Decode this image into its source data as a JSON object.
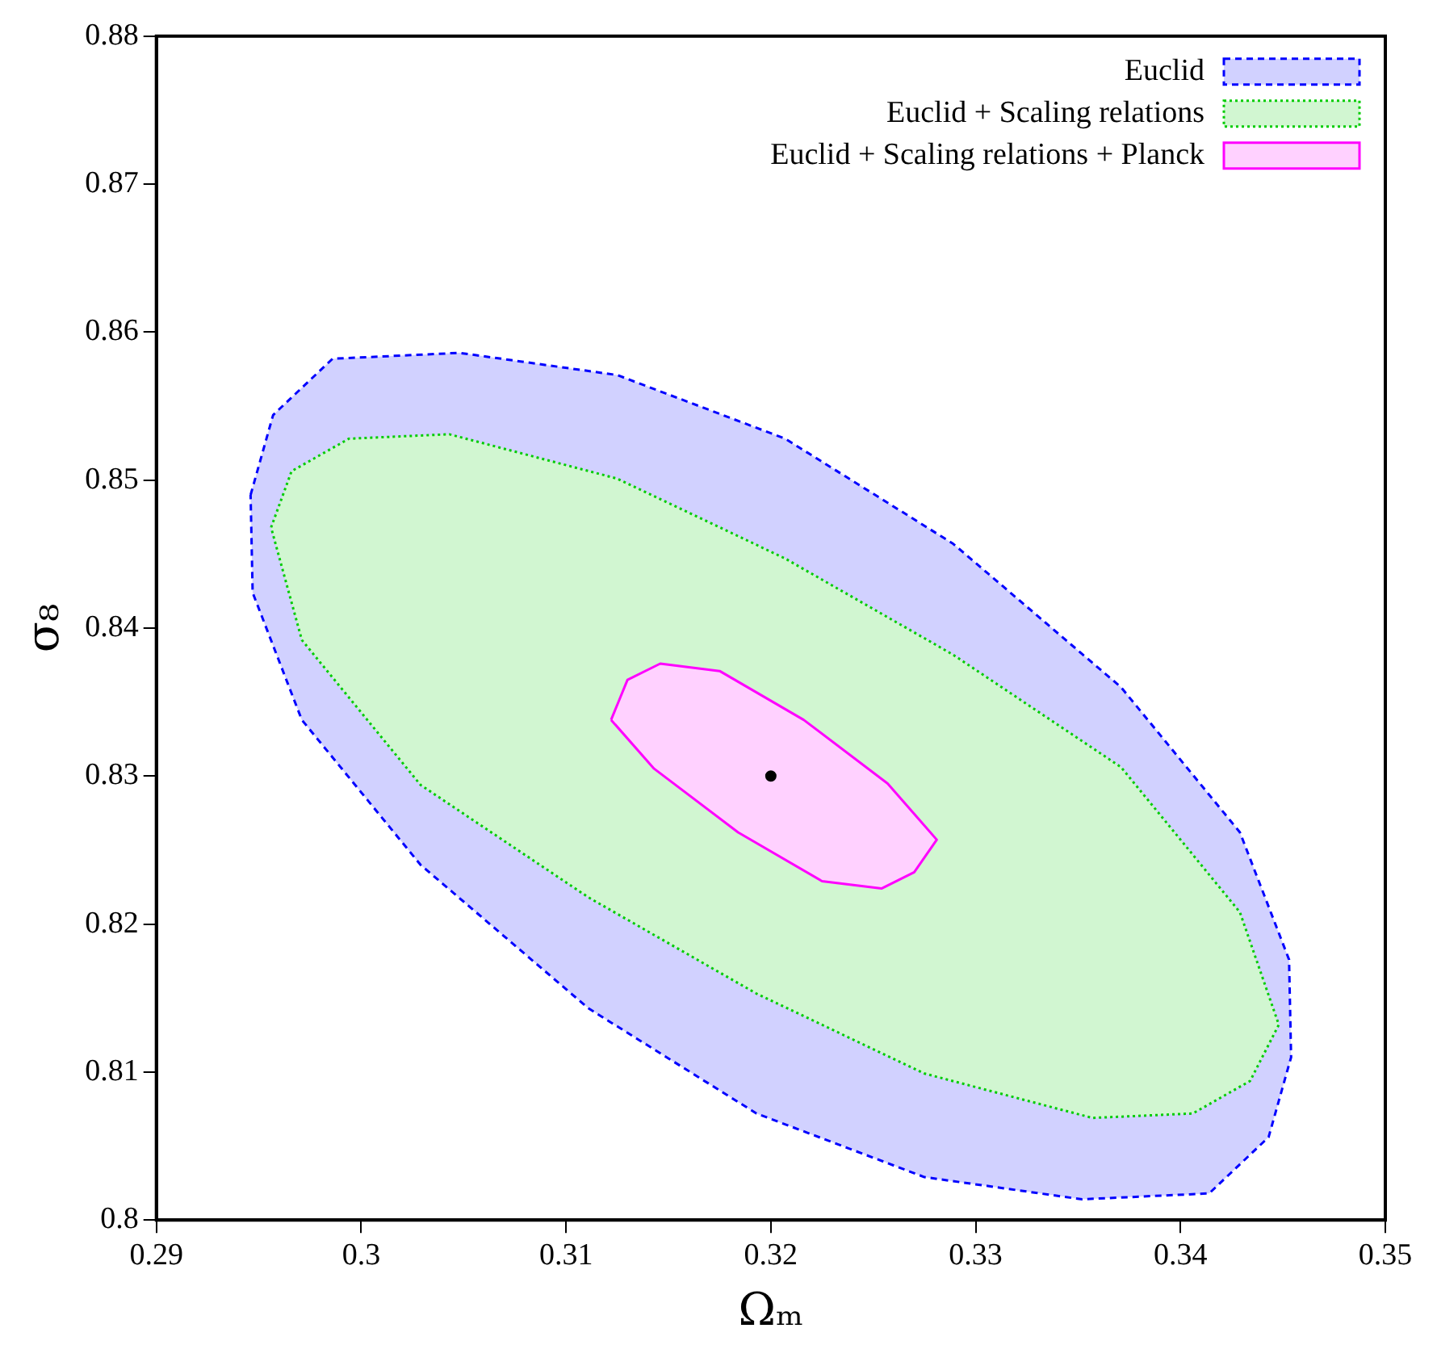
{
  "chart_data": {
    "type": "area",
    "xlabel": "Ωₘ",
    "ylabel": "σ₈",
    "xlim": [
      0.29,
      0.35
    ],
    "ylim": [
      0.8,
      0.88
    ],
    "xticks": [
      0.29,
      0.3,
      0.31,
      0.32,
      0.33,
      0.34,
      0.35
    ],
    "yticks": [
      0.8,
      0.81,
      0.82,
      0.83,
      0.84,
      0.85,
      0.86,
      0.87,
      0.88
    ],
    "grid": false,
    "legend": "top right",
    "series": [
      {
        "name": "Euclid",
        "color": "#0000ff",
        "line_style": "dashed",
        "x": [
          0.2946,
          0.2957,
          0.2986,
          0.3048,
          0.3125,
          0.3207,
          0.3289,
          0.3371,
          0.3429,
          0.3453,
          0.3454,
          0.3443,
          0.3414,
          0.3352,
          0.3275,
          0.3193,
          0.3111,
          0.3029,
          0.2971,
          0.2947,
          0.2946
        ],
        "values": [
          0.849,
          0.8544,
          0.8582,
          0.8586,
          0.8571,
          0.8528,
          0.8457,
          0.836,
          0.8262,
          0.8176,
          0.811,
          0.8056,
          0.8018,
          0.8014,
          0.8029,
          0.8072,
          0.8143,
          0.824,
          0.8338,
          0.8424,
          0.849
        ]
      },
      {
        "name": "Euclid + Scaling relations",
        "color": "#00cc00",
        "line_style": "dotted",
        "x": [
          0.2956,
          0.2966,
          0.2994,
          0.3043,
          0.3125,
          0.3207,
          0.3289,
          0.3371,
          0.3429,
          0.3448,
          0.3434,
          0.3406,
          0.3357,
          0.3275,
          0.3193,
          0.3111,
          0.3029,
          0.2971,
          0.2956
        ],
        "values": [
          0.8468,
          0.8506,
          0.8528,
          0.8531,
          0.8501,
          0.8447,
          0.8382,
          0.8306,
          0.8208,
          0.8132,
          0.8094,
          0.8072,
          0.8069,
          0.8099,
          0.8153,
          0.8218,
          0.8294,
          0.8392,
          0.8468
        ]
      },
      {
        "name": "Euclid + Scaling relations + Planck",
        "color": "#ff00ff",
        "line_style": "solid",
        "x": [
          0.3122,
          0.313,
          0.3146,
          0.3175,
          0.3216,
          0.3257,
          0.3281,
          0.327,
          0.3254,
          0.3225,
          0.3184,
          0.3143,
          0.3122
        ],
        "values": [
          0.8338,
          0.8365,
          0.8376,
          0.8371,
          0.8338,
          0.8295,
          0.8257,
          0.8235,
          0.8224,
          0.8229,
          0.8262,
          0.8305,
          0.8338
        ]
      },
      {
        "type": "scatter",
        "color": "#000000",
        "marker": "circle",
        "x": [
          0.32
        ],
        "values": [
          0.83
        ]
      }
    ]
  }
}
